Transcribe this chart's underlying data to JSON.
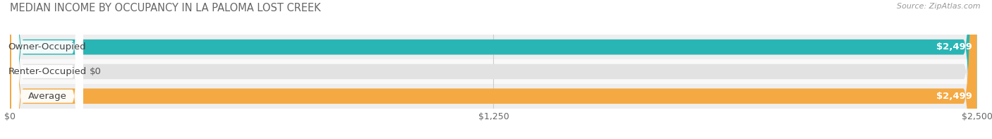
{
  "title": "MEDIAN INCOME BY OCCUPANCY IN LA PALOMA LOST CREEK",
  "source": "Source: ZipAtlas.com",
  "categories": [
    "Owner-Occupied",
    "Renter-Occupied",
    "Average"
  ],
  "values": [
    2499,
    0,
    2499
  ],
  "bar_colors": [
    "#2ab5b5",
    "#c4a0d4",
    "#f5a942"
  ],
  "value_labels": [
    "$2,499",
    "$0",
    "$2,499"
  ],
  "x_ticks": [
    0,
    1250,
    2500
  ],
  "x_tick_labels": [
    "$0",
    "$1,250",
    "$2,500"
  ],
  "xlim": [
    0,
    2500
  ],
  "bg_color_rows": [
    "#f0f0f0",
    "#f8f8f8",
    "#f0f0f0"
  ],
  "bar_bg_color": "#e2e2e2",
  "bar_height": 0.62,
  "title_fontsize": 10.5,
  "tick_fontsize": 9,
  "label_fontsize": 9.5
}
